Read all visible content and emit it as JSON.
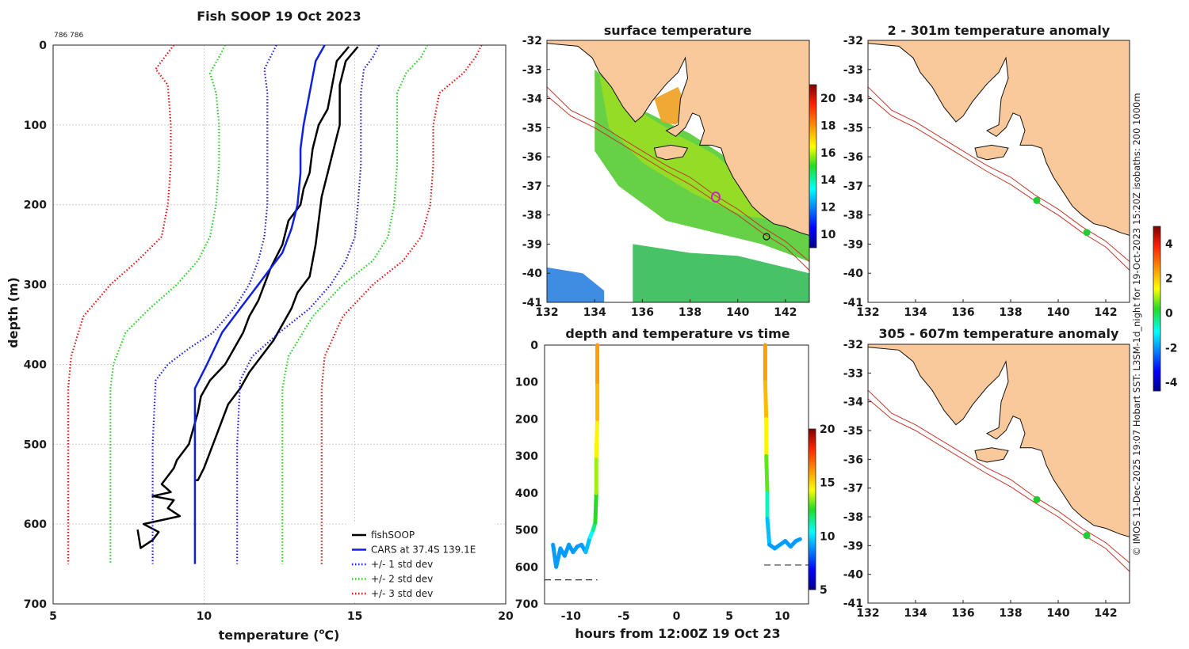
{
  "figure": {
    "footnote_small": "786 786",
    "side_caption": "© IMOS 11-Dec-2025 19:07 Hobart SST: L3SM-1d_night for 19-Oct-2023 15:20Z isobaths: 200  1000m"
  },
  "colors": {
    "land": "#f9c89b",
    "coast": "#111111",
    "isobath": "#c0392b",
    "fish": "#000000",
    "cars": "#1020e0",
    "std1": "#1d1de0",
    "std2": "#22cc22",
    "std3": "#e01010",
    "station": "#22cc33",
    "marker": "#cc22cc"
  },
  "chart_data": [
    {
      "id": "profile",
      "type": "line",
      "title": "Fish SOOP 19 Oct 2023",
      "xlabel": "temperature (",
      "xlabel_sup": "o",
      "xlabel_unit": "C)",
      "ylabel": "depth (m)",
      "xlim": [
        5,
        20
      ],
      "ylim": [
        700,
        0
      ],
      "xticks": [
        "5",
        "10",
        "15",
        "20"
      ],
      "yticks": [
        "0",
        "100",
        "200",
        "300",
        "400",
        "500",
        "600",
        "700"
      ],
      "legend": [
        "fishSOOP",
        "CARS at 37.4S 139.1E",
        "+/- 1 std dev",
        "+/- 2 std dev",
        "+/- 3 std dev"
      ],
      "series": [
        {
          "name": "fishSOOP",
          "style": "solid",
          "color": "fish",
          "x": [
            14.8,
            14.4,
            14.3,
            14.2,
            14.1,
            13.8,
            13.6,
            13.5,
            13.3,
            13.2,
            12.8,
            12.6,
            12.2,
            12.0,
            11.8,
            11.5,
            11.3,
            11.0,
            10.7,
            10.2,
            9.9,
            9.8,
            9.5,
            9.1,
            9.0,
            8.6,
            8.9,
            8.3,
            9.0,
            8.8,
            9.2,
            8.0,
            8.5,
            8.3,
            7.9,
            7.8
          ],
          "y": [
            2,
            20,
            40,
            60,
            80,
            100,
            130,
            160,
            180,
            200,
            220,
            250,
            280,
            300,
            320,
            340,
            360,
            380,
            400,
            420,
            440,
            460,
            500,
            520,
            530,
            550,
            560,
            565,
            570,
            580,
            590,
            600,
            610,
            620,
            630,
            607
          ]
        },
        {
          "name": "fishSOOP-b",
          "style": "solid",
          "color": "fish",
          "x": [
            15.1,
            14.7,
            14.5,
            14.5,
            14.3,
            14.1,
            13.9,
            13.8,
            13.7,
            13.6,
            13.5,
            13.1,
            12.9,
            12.6,
            12.3,
            11.9,
            11.5,
            11.2,
            10.8,
            10.6,
            10.4,
            10.2,
            10.0,
            9.8,
            9.7
          ],
          "y": [
            2,
            20,
            50,
            100,
            130,
            160,
            190,
            220,
            250,
            270,
            290,
            310,
            330,
            350,
            370,
            390,
            410,
            430,
            450,
            470,
            490,
            510,
            530,
            545,
            545
          ]
        },
        {
          "name": "CARS at 37.4S 139.1E",
          "style": "solid",
          "color": "cars",
          "x": [
            14.0,
            13.7,
            13.6,
            13.5,
            13.4,
            13.3,
            13.2,
            13.2,
            13.1,
            12.9,
            12.6,
            12.2,
            11.8,
            11.2,
            10.6,
            10.1,
            9.7,
            9.7,
            9.7
          ],
          "y": [
            0,
            20,
            40,
            60,
            80,
            100,
            130,
            160,
            200,
            230,
            260,
            280,
            300,
            330,
            360,
            400,
            430,
            500,
            650
          ]
        },
        {
          "name": "+/- 1 std dev",
          "style": "dotted",
          "color": "std1",
          "x": [
            12.4,
            12.2,
            12.0,
            12.1,
            12.1,
            12.1,
            12.1,
            12.0,
            11.8,
            11.5,
            11.0,
            10.3,
            9.5,
            8.8,
            8.4,
            8.3,
            8.3
          ],
          "y": [
            0,
            15,
            30,
            60,
            100,
            150,
            200,
            240,
            270,
            300,
            330,
            360,
            380,
            400,
            420,
            500,
            650
          ]
        },
        {
          "name": "+/- 1 std dev hi",
          "style": "dotted",
          "color": "std1",
          "x": [
            15.8,
            15.6,
            15.3,
            15.2,
            15.2,
            15.2,
            15.1,
            15.0,
            14.7,
            14.2,
            13.5,
            12.5,
            11.6,
            11.2,
            11.1,
            11.1
          ],
          "y": [
            0,
            15,
            30,
            60,
            100,
            150,
            200,
            240,
            270,
            300,
            330,
            360,
            390,
            420,
            500,
            650
          ]
        },
        {
          "name": "+/- 2 std dev",
          "style": "dotted",
          "color": "std2",
          "x": [
            10.7,
            10.5,
            10.2,
            10.4,
            10.5,
            10.5,
            10.4,
            10.2,
            9.8,
            9.1,
            8.2,
            7.4,
            7.0,
            6.9,
            6.9
          ],
          "y": [
            0,
            15,
            35,
            60,
            100,
            150,
            200,
            240,
            270,
            300,
            330,
            360,
            400,
            430,
            650
          ]
        },
        {
          "name": "+/- 2 std dev hi",
          "style": "dotted",
          "color": "std2",
          "x": [
            17.4,
            17.2,
            16.7,
            16.4,
            16.4,
            16.4,
            16.3,
            16.1,
            15.6,
            14.6,
            13.6,
            12.8,
            12.6,
            12.6
          ],
          "y": [
            0,
            15,
            35,
            60,
            100,
            150,
            200,
            240,
            270,
            300,
            340,
            390,
            430,
            650
          ]
        },
        {
          "name": "+/- 3 std dev",
          "style": "dotted",
          "color": "std3",
          "x": [
            9.0,
            8.7,
            8.4,
            8.8,
            8.9,
            8.9,
            8.8,
            8.6,
            7.8,
            6.9,
            6.0,
            5.6,
            5.5,
            5.5
          ],
          "y": [
            0,
            15,
            30,
            50,
            100,
            150,
            200,
            240,
            270,
            300,
            340,
            390,
            430,
            650
          ]
        },
        {
          "name": "+/- 3 std dev hi",
          "style": "dotted",
          "color": "std3",
          "x": [
            19.2,
            19.0,
            18.6,
            17.8,
            17.6,
            17.6,
            17.5,
            17.2,
            16.6,
            15.6,
            14.6,
            14.0,
            13.9,
            13.9
          ],
          "y": [
            0,
            15,
            35,
            60,
            100,
            150,
            200,
            240,
            270,
            300,
            340,
            390,
            430,
            650
          ]
        }
      ]
    },
    {
      "id": "depth_time",
      "type": "scatter",
      "title": "depth and temperature vs time",
      "xlabel": "hours from 12:00Z 19 Oct 23",
      "ylabel": "",
      "xlim": [
        -12.5,
        12.5
      ],
      "ylim": [
        700,
        0
      ],
      "xticks": [
        "-10",
        "-5",
        "0",
        "5",
        "10"
      ],
      "yticks": [
        "0",
        "100",
        "200",
        "300",
        "400",
        "500",
        "600",
        "700"
      ],
      "colorbar": {
        "ticks": [
          "5",
          "10",
          "15",
          "20"
        ],
        "range": [
          5,
          20
        ]
      },
      "segments": [
        {
          "t": [
            -11.7,
            -11.4,
            -11.0,
            -10.6,
            -10.2,
            -9.8,
            -9.4,
            -9.0,
            -8.6,
            -8.2,
            -7.9,
            -7.7,
            -7.6,
            -7.6,
            -7.5,
            -7.5,
            -7.5
          ],
          "d": [
            540,
            600,
            550,
            570,
            540,
            560,
            545,
            540,
            560,
            520,
            500,
            480,
            400,
            300,
            200,
            100,
            0
          ],
          "temp": [
            9,
            9,
            9,
            9,
            9,
            9,
            9,
            9,
            9,
            10,
            11,
            12,
            13,
            14,
            15,
            16,
            16
          ]
        },
        {
          "t": [
            8.4,
            8.4,
            8.5,
            8.5,
            8.6,
            8.6,
            8.8,
            9.3,
            9.8,
            10.3,
            10.8,
            11.3,
            11.7
          ],
          "d": [
            0,
            100,
            200,
            300,
            400,
            470,
            540,
            550,
            540,
            530,
            545,
            530,
            525
          ],
          "temp": [
            16,
            16,
            15,
            14,
            12,
            10,
            9,
            9,
            9,
            9,
            9,
            9,
            9
          ]
        }
      ],
      "bottom_depth": [
        {
          "t": [
            -12.5,
            -7.5
          ],
          "d": 635
        },
        {
          "t": [
            8.3,
            12.5
          ],
          "d": 595
        }
      ]
    },
    {
      "id": "maps",
      "type": "heatmap",
      "titles": [
        "surface temperature",
        "2 - 301m temperature anomaly",
        "305 - 607m temperature anomaly"
      ],
      "lon_ticks": [
        "132",
        "134",
        "136",
        "138",
        "140",
        "142"
      ],
      "lat_ticks": [
        "-32",
        "-33",
        "-34",
        "-35",
        "-36",
        "-37",
        "-38",
        "-39",
        "-40",
        "-41"
      ],
      "lon_range": [
        132,
        143
      ],
      "lat_range": [
        -41,
        -32
      ],
      "sst_colorbar": {
        "ticks": [
          "10",
          "12",
          "14",
          "16",
          "18",
          "20"
        ],
        "range": [
          9,
          21
        ]
      },
      "anom_colorbar": {
        "ticks": [
          "-4",
          "-2",
          "0",
          "2",
          "4"
        ],
        "range": [
          -4.5,
          5
        ]
      },
      "stations": [
        {
          "lon": 139.1,
          "lat": -37.5
        },
        {
          "lon": 141.2,
          "lat": -38.6
        }
      ],
      "stations_deep": [
        {
          "lon": 139.1,
          "lat": -37.4
        },
        {
          "lon": 141.2,
          "lat": -38.65
        }
      ]
    }
  ]
}
